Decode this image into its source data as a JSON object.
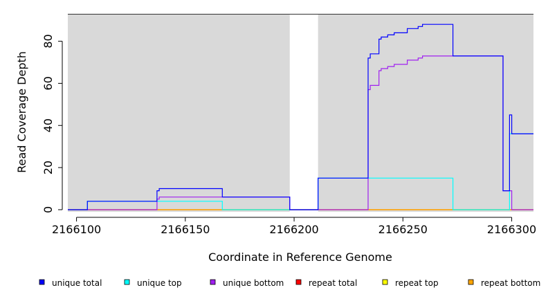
{
  "chart_data": {
    "type": "line",
    "xlabel": "Coordinate in Reference Genome",
    "ylabel": "Read Coverage Depth",
    "xlim": [
      2166096,
      2166310
    ],
    "ylim": [
      -1,
      93
    ],
    "xticks": [
      2166100,
      2166150,
      2166200,
      2166250,
      2166300
    ],
    "yticks": [
      0,
      20,
      40,
      60,
      80
    ],
    "grid": false,
    "background_color": "#d9d9d9",
    "gap_regions": [
      [
        2166198,
        2166211
      ]
    ],
    "legend_position": "bottom",
    "series": [
      {
        "name": "unique total",
        "color": "#0000ff",
        "points": [
          [
            2166096,
            0
          ],
          [
            2166105,
            0
          ],
          [
            2166105,
            4
          ],
          [
            2166137,
            4
          ],
          [
            2166137,
            9
          ],
          [
            2166138,
            9
          ],
          [
            2166138,
            10
          ],
          [
            2166167,
            10
          ],
          [
            2166167,
            6
          ],
          [
            2166198,
            6
          ],
          [
            2166198,
            0
          ],
          [
            2166211,
            0
          ],
          [
            2166211,
            15
          ],
          [
            2166234,
            15
          ],
          [
            2166234,
            72
          ],
          [
            2166235,
            72
          ],
          [
            2166235,
            74
          ],
          [
            2166239,
            74
          ],
          [
            2166239,
            81
          ],
          [
            2166240,
            81
          ],
          [
            2166240,
            82
          ],
          [
            2166243,
            82
          ],
          [
            2166243,
            83
          ],
          [
            2166246,
            83
          ],
          [
            2166246,
            84
          ],
          [
            2166252,
            84
          ],
          [
            2166252,
            86
          ],
          [
            2166257,
            86
          ],
          [
            2166257,
            87
          ],
          [
            2166259,
            87
          ],
          [
            2166259,
            88
          ],
          [
            2166273,
            88
          ],
          [
            2166273,
            73
          ],
          [
            2166296,
            73
          ],
          [
            2166296,
            9
          ],
          [
            2166299,
            9
          ],
          [
            2166299,
            45
          ],
          [
            2166300,
            45
          ],
          [
            2166300,
            36
          ],
          [
            2166310,
            36
          ]
        ]
      },
      {
        "name": "unique top",
        "color": "#00ffff",
        "points": [
          [
            2166096,
            0
          ],
          [
            2166105,
            0
          ],
          [
            2166105,
            4
          ],
          [
            2166167,
            4
          ],
          [
            2166167,
            0
          ],
          [
            2166198,
            0
          ],
          [
            2166198,
            0
          ],
          [
            2166211,
            0
          ],
          [
            2166211,
            15
          ],
          [
            2166273,
            15
          ],
          [
            2166273,
            0
          ],
          [
            2166299,
            0
          ],
          [
            2166299,
            36
          ],
          [
            2166310,
            36
          ]
        ]
      },
      {
        "name": "unique bottom",
        "color": "#a020f0",
        "points": [
          [
            2166096,
            0
          ],
          [
            2166137,
            0
          ],
          [
            2166137,
            5
          ],
          [
            2166138,
            5
          ],
          [
            2166138,
            6
          ],
          [
            2166198,
            6
          ],
          [
            2166198,
            0
          ],
          [
            2166234,
            0
          ],
          [
            2166234,
            57
          ],
          [
            2166235,
            57
          ],
          [
            2166235,
            59
          ],
          [
            2166239,
            59
          ],
          [
            2166239,
            66
          ],
          [
            2166240,
            66
          ],
          [
            2166240,
            67
          ],
          [
            2166243,
            67
          ],
          [
            2166243,
            68
          ],
          [
            2166246,
            68
          ],
          [
            2166246,
            69
          ],
          [
            2166252,
            69
          ],
          [
            2166252,
            71
          ],
          [
            2166257,
            71
          ],
          [
            2166257,
            72
          ],
          [
            2166259,
            72
          ],
          [
            2166259,
            73
          ],
          [
            2166296,
            73
          ],
          [
            2166296,
            9
          ],
          [
            2166300,
            9
          ],
          [
            2166300,
            0
          ],
          [
            2166310,
            0
          ]
        ]
      },
      {
        "name": "repeat total",
        "color": "#ff0000",
        "points": [
          [
            2166096,
            0
          ],
          [
            2166310,
            0
          ]
        ]
      },
      {
        "name": "repeat top",
        "color": "#ffff00",
        "points": [
          [
            2166096,
            0
          ],
          [
            2166310,
            0
          ]
        ]
      },
      {
        "name": "repeat bottom",
        "color": "#ffa500",
        "points": [
          [
            2166096,
            0
          ],
          [
            2166310,
            0
          ]
        ]
      }
    ]
  }
}
